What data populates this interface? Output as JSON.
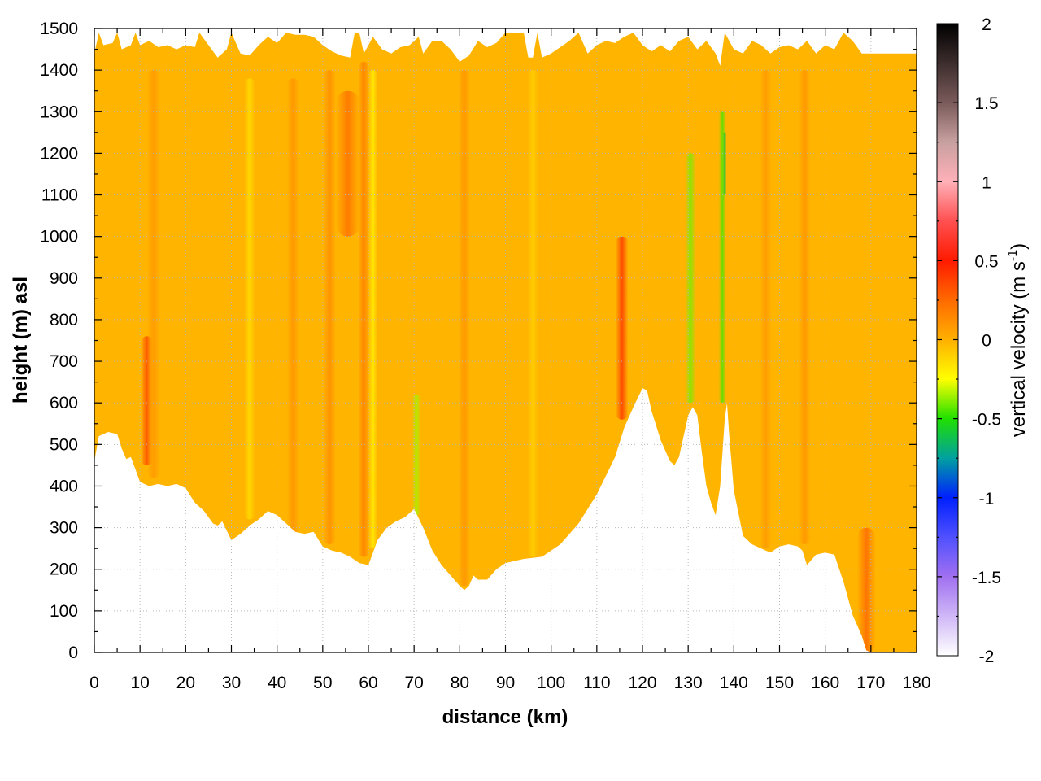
{
  "chart_data": {
    "type": "heatmap",
    "title": "",
    "xlabel": "distance (km)",
    "ylabel": "height (m) asl",
    "xlim": [
      0,
      180
    ],
    "ylim": [
      0,
      1500
    ],
    "x_ticks": [
      0,
      10,
      20,
      30,
      40,
      50,
      60,
      70,
      80,
      90,
      100,
      110,
      120,
      130,
      140,
      150,
      160,
      170,
      180
    ],
    "y_ticks": [
      0,
      100,
      200,
      300,
      400,
      500,
      600,
      700,
      800,
      900,
      1000,
      1100,
      1200,
      1300,
      1400,
      1500
    ],
    "grid": true,
    "colorbar": {
      "label_main": "vertical velocity (m s",
      "label_sup": "-1",
      "label_end": ")",
      "range": [
        -2,
        2
      ],
      "ticks": [
        "2",
        "1.5",
        "1",
        "0.5",
        "0",
        "-0.5",
        "-1",
        "-1.5",
        "-2"
      ],
      "tick_values": [
        2,
        1.5,
        1,
        0.5,
        0,
        -0.5,
        -1,
        -1.5,
        -2
      ],
      "stops": [
        {
          "value": 2,
          "color": "#000000"
        },
        {
          "value": 1.5,
          "color": "#7a5a5a"
        },
        {
          "value": 1.25,
          "color": "#c8a0a0"
        },
        {
          "value": 1.0,
          "color": "#ffb0b8"
        },
        {
          "value": 0.75,
          "color": "#ff5050"
        },
        {
          "value": 0.5,
          "color": "#ff1a00"
        },
        {
          "value": 0.25,
          "color": "#ff6a00"
        },
        {
          "value": 0.0,
          "color": "#ffb000"
        },
        {
          "value": -0.25,
          "color": "#ffff00"
        },
        {
          "value": -0.5,
          "color": "#20e000"
        },
        {
          "value": -0.75,
          "color": "#00a0a0"
        },
        {
          "value": -1.0,
          "color": "#0020ff"
        },
        {
          "value": -1.25,
          "color": "#5050ff"
        },
        {
          "value": -1.5,
          "color": "#a070f0"
        },
        {
          "value": -2,
          "color": "#ffffff"
        }
      ]
    },
    "background_color": "#ffb400",
    "terrain": [
      [
        0,
        460
      ],
      [
        1,
        520
      ],
      [
        3,
        530
      ],
      [
        5,
        525
      ],
      [
        6,
        490
      ],
      [
        7,
        465
      ],
      [
        8,
        470
      ],
      [
        9,
        440
      ],
      [
        10,
        410
      ],
      [
        12,
        400
      ],
      [
        14,
        405
      ],
      [
        16,
        400
      ],
      [
        18,
        405
      ],
      [
        20,
        395
      ],
      [
        22,
        360
      ],
      [
        24,
        340
      ],
      [
        26,
        310
      ],
      [
        27,
        305
      ],
      [
        28,
        315
      ],
      [
        30,
        270
      ],
      [
        32,
        285
      ],
      [
        34,
        305
      ],
      [
        36,
        320
      ],
      [
        38,
        340
      ],
      [
        40,
        330
      ],
      [
        42,
        310
      ],
      [
        44,
        290
      ],
      [
        46,
        285
      ],
      [
        48,
        290
      ],
      [
        50,
        255
      ],
      [
        52,
        245
      ],
      [
        54,
        240
      ],
      [
        56,
        230
      ],
      [
        58,
        215
      ],
      [
        60,
        210
      ],
      [
        62,
        270
      ],
      [
        64,
        300
      ],
      [
        66,
        315
      ],
      [
        68,
        325
      ],
      [
        70,
        345
      ],
      [
        72,
        300
      ],
      [
        74,
        245
      ],
      [
        76,
        210
      ],
      [
        78,
        185
      ],
      [
        80,
        160
      ],
      [
        81,
        150
      ],
      [
        82,
        160
      ],
      [
        83,
        185
      ],
      [
        84,
        175
      ],
      [
        86,
        175
      ],
      [
        88,
        200
      ],
      [
        90,
        215
      ],
      [
        94,
        225
      ],
      [
        98,
        230
      ],
      [
        102,
        260
      ],
      [
        106,
        310
      ],
      [
        110,
        380
      ],
      [
        114,
        470
      ],
      [
        116,
        540
      ],
      [
        118,
        590
      ],
      [
        120,
        635
      ],
      [
        121,
        630
      ],
      [
        122,
        580
      ],
      [
        124,
        510
      ],
      [
        126,
        460
      ],
      [
        127,
        450
      ],
      [
        128,
        470
      ],
      [
        130,
        570
      ],
      [
        131,
        590
      ],
      [
        132,
        570
      ],
      [
        133,
        480
      ],
      [
        134,
        400
      ],
      [
        135,
        360
      ],
      [
        136,
        330
      ],
      [
        137,
        400
      ],
      [
        138,
        560
      ],
      [
        138.5,
        600
      ],
      [
        139,
        520
      ],
      [
        140,
        390
      ],
      [
        142,
        280
      ],
      [
        144,
        260
      ],
      [
        146,
        250
      ],
      [
        148,
        240
      ],
      [
        150,
        255
      ],
      [
        152,
        260
      ],
      [
        154,
        255
      ],
      [
        155,
        245
      ],
      [
        156,
        210
      ],
      [
        158,
        235
      ],
      [
        160,
        240
      ],
      [
        162,
        235
      ],
      [
        164,
        170
      ],
      [
        166,
        90
      ],
      [
        168,
        40
      ],
      [
        169,
        5
      ],
      [
        170,
        0
      ]
    ],
    "top_boundary": [
      [
        0,
        1440
      ],
      [
        1,
        1490
      ],
      [
        2,
        1460
      ],
      [
        4,
        1465
      ],
      [
        5,
        1490
      ],
      [
        6,
        1450
      ],
      [
        8,
        1460
      ],
      [
        9,
        1490
      ],
      [
        10,
        1460
      ],
      [
        12,
        1470
      ],
      [
        14,
        1455
      ],
      [
        16,
        1460
      ],
      [
        18,
        1450
      ],
      [
        20,
        1460
      ],
      [
        22,
        1455
      ],
      [
        23,
        1490
      ],
      [
        25,
        1460
      ],
      [
        27,
        1430
      ],
      [
        29,
        1450
      ],
      [
        30,
        1490
      ],
      [
        32,
        1440
      ],
      [
        34,
        1435
      ],
      [
        36,
        1460
      ],
      [
        38,
        1480
      ],
      [
        40,
        1465
      ],
      [
        42,
        1490
      ],
      [
        44,
        1485
      ],
      [
        46,
        1485
      ],
      [
        48,
        1480
      ],
      [
        50,
        1460
      ],
      [
        52,
        1445
      ],
      [
        54,
        1435
      ],
      [
        56,
        1430
      ],
      [
        57,
        1490
      ],
      [
        58,
        1490
      ],
      [
        59,
        1440
      ],
      [
        61,
        1480
      ],
      [
        63,
        1450
      ],
      [
        65,
        1440
      ],
      [
        67,
        1455
      ],
      [
        69,
        1460
      ],
      [
        71,
        1480
      ],
      [
        72,
        1440
      ],
      [
        74,
        1470
      ],
      [
        76,
        1470
      ],
      [
        78,
        1450
      ],
      [
        80,
        1420
      ],
      [
        82,
        1435
      ],
      [
        84,
        1470
      ],
      [
        86,
        1455
      ],
      [
        88,
        1465
      ],
      [
        90,
        1490
      ],
      [
        92,
        1490
      ],
      [
        94,
        1490
      ],
      [
        95,
        1430
      ],
      [
        96,
        1430
      ],
      [
        97,
        1490
      ],
      [
        98,
        1430
      ],
      [
        100,
        1440
      ],
      [
        102,
        1455
      ],
      [
        104,
        1470
      ],
      [
        106,
        1490
      ],
      [
        108,
        1440
      ],
      [
        110,
        1460
      ],
      [
        112,
        1470
      ],
      [
        114,
        1465
      ],
      [
        116,
        1480
      ],
      [
        118,
        1490
      ],
      [
        120,
        1460
      ],
      [
        122,
        1445
      ],
      [
        124,
        1460
      ],
      [
        126,
        1445
      ],
      [
        128,
        1470
      ],
      [
        130,
        1480
      ],
      [
        132,
        1450
      ],
      [
        134,
        1470
      ],
      [
        136,
        1440
      ],
      [
        137,
        1410
      ],
      [
        138,
        1490
      ],
      [
        140,
        1450
      ],
      [
        142,
        1440
      ],
      [
        144,
        1470
      ],
      [
        146,
        1460
      ],
      [
        148,
        1440
      ],
      [
        150,
        1455
      ],
      [
        152,
        1460
      ],
      [
        154,
        1450
      ],
      [
        156,
        1470
      ],
      [
        158,
        1440
      ],
      [
        160,
        1460
      ],
      [
        162,
        1450
      ],
      [
        164,
        1490
      ],
      [
        166,
        1470
      ],
      [
        168,
        1440
      ],
      [
        170,
        1440
      ],
      [
        180,
        1440
      ]
    ],
    "features": [
      {
        "x": 11.5,
        "width": 1.3,
        "y_bottom": 450,
        "y_top": 760,
        "value": 0.35
      },
      {
        "x": 13.0,
        "width": 1.5,
        "y_bottom": 420,
        "y_top": 1400,
        "value": 0.08
      },
      {
        "x": 34.0,
        "width": 1.2,
        "y_bottom": 320,
        "y_top": 1380,
        "value": -0.15
      },
      {
        "x": 43.5,
        "width": 1.4,
        "y_bottom": 280,
        "y_top": 1380,
        "value": 0.1
      },
      {
        "x": 51.5,
        "width": 1.4,
        "y_bottom": 260,
        "y_top": 1400,
        "value": 0.12
      },
      {
        "x": 55.5,
        "width": 2.6,
        "y_bottom": 1000,
        "y_top": 1350,
        "value": 0.22
      },
      {
        "x": 59.0,
        "width": 1.2,
        "y_bottom": 230,
        "y_top": 1420,
        "value": 0.18
      },
      {
        "x": 61.0,
        "width": 1.0,
        "y_bottom": 250,
        "y_top": 1400,
        "value": -0.2
      },
      {
        "x": 70.5,
        "width": 1.0,
        "y_bottom": 330,
        "y_top": 620,
        "value": -0.35
      },
      {
        "x": 81.0,
        "width": 1.3,
        "y_bottom": 160,
        "y_top": 1400,
        "value": 0.1
      },
      {
        "x": 96.0,
        "width": 1.2,
        "y_bottom": 230,
        "y_top": 1400,
        "value": -0.1
      },
      {
        "x": 115.5,
        "width": 1.4,
        "y_bottom": 560,
        "y_top": 1000,
        "value": 0.4
      },
      {
        "x": 130.5,
        "width": 1.2,
        "y_bottom": 600,
        "y_top": 1200,
        "value": -0.4
      },
      {
        "x": 137.5,
        "width": 0.8,
        "y_bottom": 600,
        "y_top": 1300,
        "value": -0.45
      },
      {
        "x": 138.0,
        "width": 0.4,
        "y_bottom": 1100,
        "y_top": 1250,
        "value": -0.6
      },
      {
        "x": 147.0,
        "width": 1.3,
        "y_bottom": 250,
        "y_top": 1400,
        "value": 0.08
      },
      {
        "x": 155.5,
        "width": 1.3,
        "y_bottom": 260,
        "y_top": 1400,
        "value": 0.1
      },
      {
        "x": 169.0,
        "width": 2.0,
        "y_bottom": 0,
        "y_top": 300,
        "value": 0.25
      }
    ]
  }
}
